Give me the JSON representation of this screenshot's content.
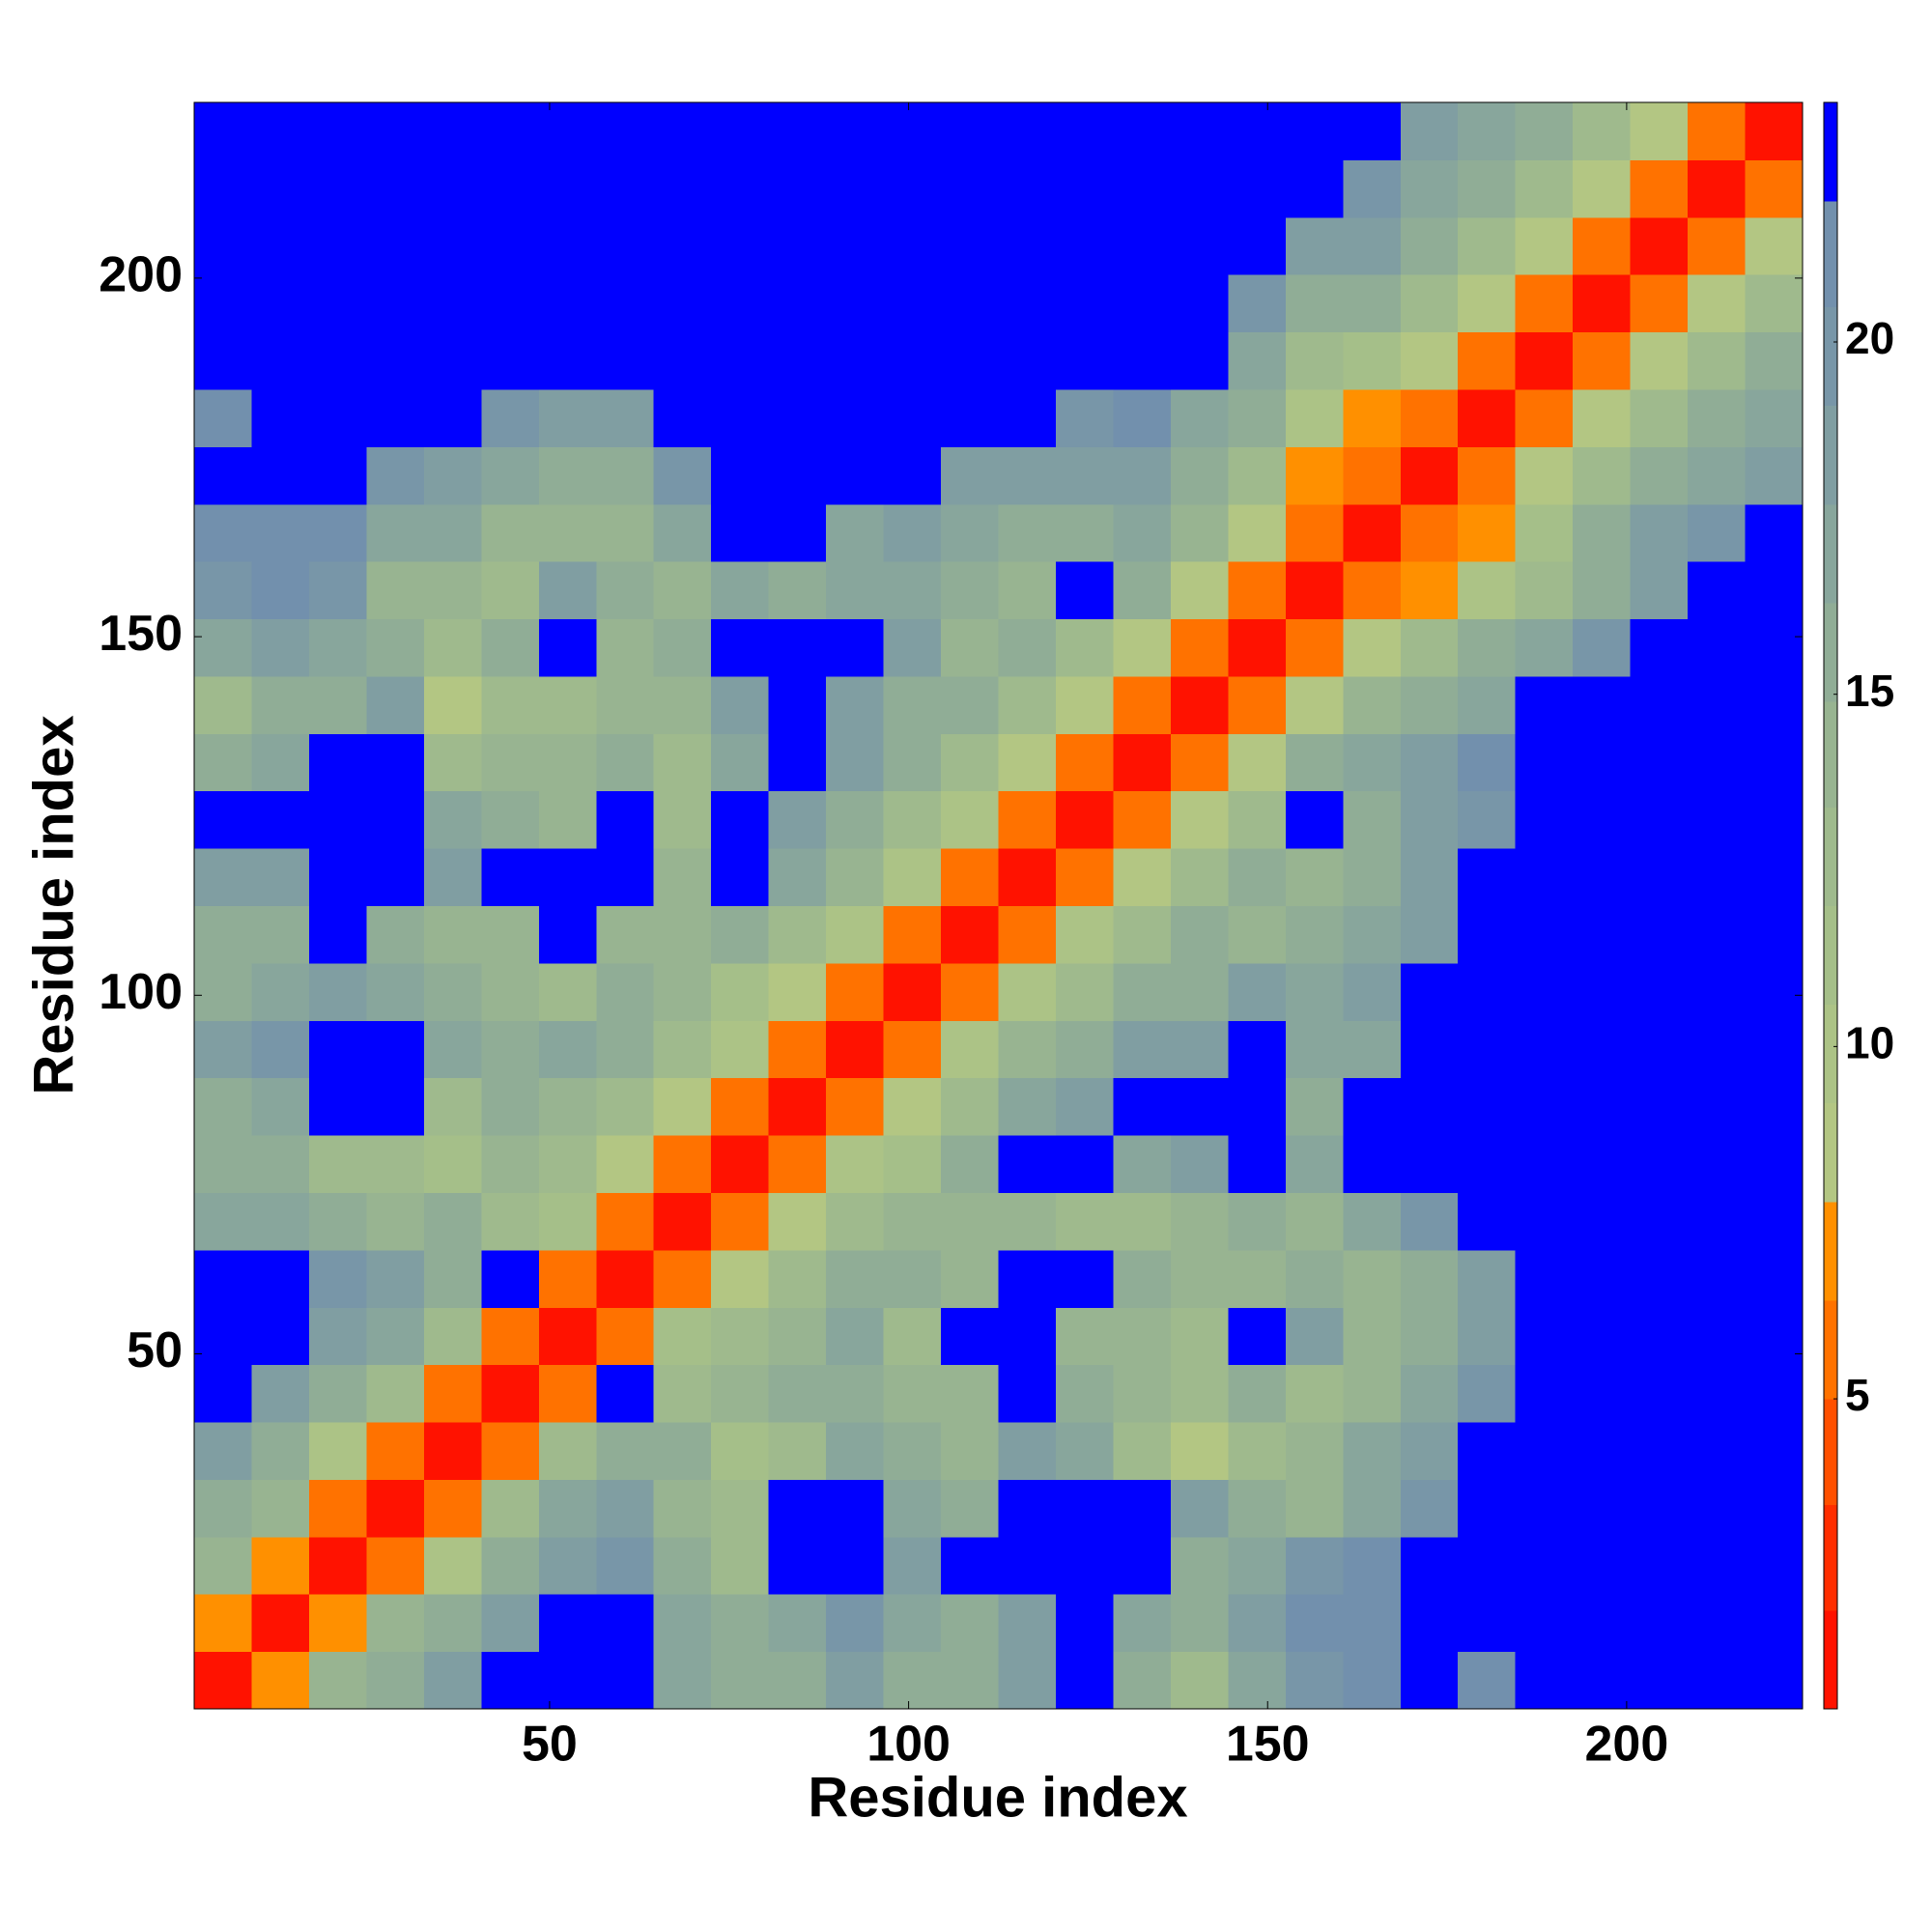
{
  "chart_data": {
    "type": "heatmap",
    "xlabel": "Residue index",
    "ylabel": "Residue index",
    "bins": [
      0.5,
      8.5,
      16.5,
      24.5,
      32.5,
      40.5,
      48.5,
      56.5,
      64.5,
      72.5,
      80.5,
      88.5,
      96.5,
      104.5,
      112.5,
      120.5,
      128.5,
      136.5,
      144.5,
      152.5,
      160.5,
      168.5,
      176.5,
      184.5,
      192.5,
      200.5,
      208.5,
      216.5,
      224.5
    ],
    "xlim": [
      0.5,
      224.5
    ],
    "ylim": [
      0.5,
      224.5
    ],
    "xticks": [
      50,
      100,
      150,
      200
    ],
    "yticks": [
      50,
      100,
      150,
      200
    ],
    "symmetric": true,
    "z": [
      [
        1.5,
        7,
        14,
        16,
        18,
        23,
        23,
        23,
        17,
        15,
        15,
        19,
        15,
        15,
        19,
        23,
        16,
        12,
        17,
        20,
        21,
        23,
        21,
        23,
        23,
        23,
        23,
        23
      ],
      [
        1.5,
        7,
        14,
        16,
        19,
        23,
        23,
        17,
        16,
        17,
        20,
        17,
        16,
        19,
        23,
        17,
        15,
        19,
        21,
        21,
        23,
        23,
        23,
        23,
        23,
        23,
        23
      ],
      [
        1.5,
        6,
        10,
        15,
        19,
        20,
        16,
        12,
        23,
        23,
        18,
        23,
        23,
        23,
        23,
        16,
        17,
        20,
        21,
        23,
        23,
        23,
        23,
        23,
        23,
        23
      ],
      [
        1.5,
        6,
        12,
        17,
        18,
        14,
        13,
        23,
        23,
        17,
        16,
        23,
        23,
        23,
        19,
        15,
        14,
        17,
        20,
        23,
        23,
        23,
        23,
        23,
        23
      ],
      [
        1.5,
        6,
        12,
        16,
        16,
        11,
        13,
        17,
        16,
        14,
        18,
        17,
        13,
        9,
        13,
        14,
        17,
        19,
        23,
        23,
        23,
        23,
        23,
        23
      ],
      [
        1.5,
        6,
        23,
        12,
        14,
        15,
        16,
        14,
        14,
        23,
        16,
        14,
        12,
        15,
        12,
        14,
        17,
        20,
        23,
        23,
        23,
        23,
        23
      ],
      [
        1.5,
        5,
        11,
        13,
        14,
        17,
        13,
        23,
        23,
        14,
        14,
        13,
        23,
        18,
        14,
        15,
        19,
        23,
        23,
        23,
        23,
        23
      ],
      [
        1.5,
        5,
        9,
        13,
        15,
        16,
        14,
        23,
        23,
        15,
        14,
        14,
        16,
        14,
        16,
        19,
        23,
        23,
        23,
        23,
        23
      ],
      [
        1.5,
        5,
        9,
        12,
        14,
        14,
        14,
        12,
        13,
        14,
        15,
        14,
        17,
        20,
        22,
        23,
        23,
        23,
        23,
        23
      ],
      [
        1.5,
        5,
        10,
        11,
        15,
        23,
        23,
        17,
        19,
        23,
        17,
        23,
        23,
        23,
        23,
        23,
        23,
        23,
        23
      ],
      [
        1.5,
        5,
        8,
        13,
        17,
        19,
        23,
        23,
        23,
        16,
        23,
        23,
        23,
        23,
        23,
        23,
        23,
        23
      ],
      [
        1.5,
        5,
        10,
        14,
        16,
        19,
        19,
        23,
        17,
        17,
        23,
        23,
        23,
        23,
        23,
        23,
        23
      ],
      [
        1.5,
        5,
        10,
        12,
        16,
        15,
        19,
        17,
        18,
        23,
        23,
        23,
        23,
        23,
        23,
        23
      ],
      [
        1.5,
        5,
        10,
        13,
        16,
        14,
        15,
        17,
        19,
        23,
        23,
        23,
        23,
        23,
        23
      ],
      [
        1.5,
        5,
        9,
        13,
        16,
        14,
        16,
        19,
        23,
        23,
        23,
        23,
        23,
        23
      ],
      [
        1.5,
        5,
        8,
        13,
        23,
        16,
        18,
        20,
        23,
        23,
        23,
        23,
        23
      ],
      [
        1.5,
        5,
        9,
        15,
        17,
        19,
        21,
        23,
        23,
        23,
        23,
        23
      ],
      [
        1.5,
        5,
        9,
        14,
        16,
        17,
        22,
        23,
        23,
        23,
        23
      ],
      [
        1.5,
        5,
        8,
        13,
        15,
        17,
        20,
        23,
        23,
        23
      ],
      [
        1.5,
        5,
        7,
        10,
        13,
        16,
        19,
        23,
        23
      ],
      [
        1.5,
        5,
        7,
        11,
        15,
        18,
        20,
        22
      ],
      [
        1.5,
        5,
        8,
        12,
        16,
        17,
        18
      ],
      [
        1.5,
        5,
        9,
        13,
        15,
        17
      ],
      [
        1.5,
        5,
        8,
        13,
        16
      ],
      [
        1.5,
        5,
        9,
        12
      ],
      [
        1.5,
        5,
        9
      ],
      [
        1.5,
        5
      ],
      [
        1.5
      ]
    ],
    "colorbar": {
      "levels": [
        0.6,
        2,
        3.5,
        5,
        6.4,
        7.8,
        9.2,
        10.6,
        12,
        13.4,
        14.9,
        16.3,
        17.7,
        19.1,
        20.5,
        22,
        23.4
      ],
      "colors": [
        "#ff1200",
        "#ff2e00",
        "#ff5000",
        "#ff7200",
        "#ff9000",
        "#b3c683",
        "#acc386",
        "#a5bf89",
        "#9fba8d",
        "#98b491",
        "#90ad96",
        "#88a69c",
        "#809ea2",
        "#7896a8",
        "#7290ad",
        "#0000ff"
      ],
      "ticks": [
        5,
        10,
        15,
        20
      ]
    }
  }
}
